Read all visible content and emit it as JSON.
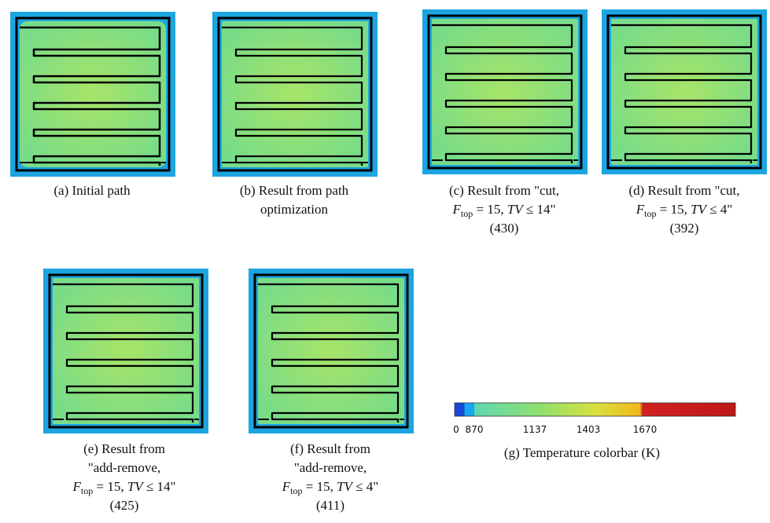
{
  "panels": [
    {
      "lines": [
        "(a) Initial path"
      ]
    },
    {
      "lines": [
        "(b) Result from path",
        "optimization"
      ]
    },
    {
      "lines": [
        "(c) Result from \"cut,",
        "(430)"
      ],
      "math": {
        "f": "F",
        "sub": "top",
        "eq": " = 15, ",
        "tv": "TV",
        "bound": " ≤ 14\""
      }
    },
    {
      "lines": [
        "(d) Result from \"cut,",
        "(392)"
      ],
      "math": {
        "f": "F",
        "sub": "top",
        "eq": " = 15, ",
        "tv": "TV",
        "bound": " ≤ 4\""
      }
    },
    {
      "lines": [
        "(e) Result from",
        "\"add-remove,",
        "(425)"
      ],
      "math": {
        "f": "F",
        "sub": "top",
        "eq": " = 15, ",
        "tv": "TV",
        "bound": " ≤ 14\""
      }
    },
    {
      "lines": [
        "(f) Result from",
        "\"add-remove,",
        "(411)"
      ],
      "math": {
        "f": "F",
        "sub": "top",
        "eq": " = 15, ",
        "tv": "TV",
        "bound": " ≤ 4\""
      }
    }
  ],
  "colorbar": {
    "caption": "(g) Temperature colorbar (K)",
    "ticks": [
      0,
      870,
      1137,
      1403,
      1670
    ]
  }
}
